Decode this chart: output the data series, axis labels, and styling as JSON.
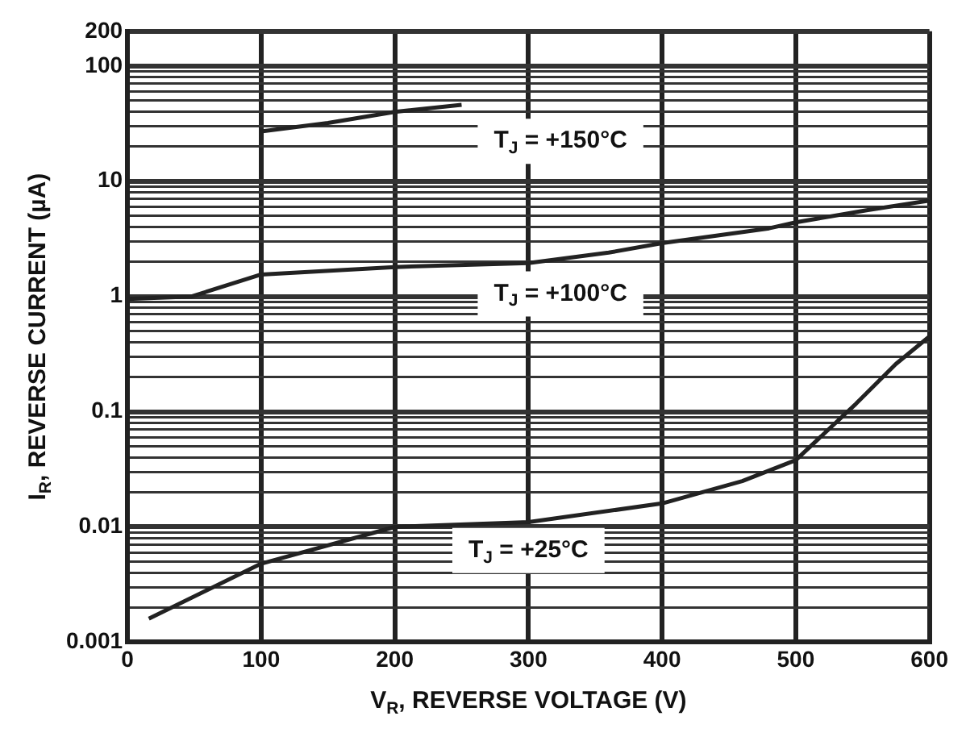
{
  "chart_data": {
    "type": "line",
    "xlabel": "V$_{R}$, REVERSE VOLTAGE (V)",
    "ylabel": "I$_{R}$, REVERSE CURRENT (µA)",
    "log": "y",
    "grid": true,
    "legend": false,
    "xlim": [
      0,
      600
    ],
    "xticks": [
      0,
      100,
      200,
      300,
      400,
      500,
      600
    ],
    "ylim": [
      0.001,
      200
    ],
    "yticks": [
      0.001,
      {
        "value": 0.002,
        "label": null
      },
      {
        "value": 0.003,
        "label": null
      },
      {
        "value": 0.004,
        "label": null
      },
      {
        "value": 0.005,
        "label": null
      },
      {
        "value": 0.006,
        "label": null
      },
      {
        "value": 0.007,
        "label": null
      },
      {
        "value": 0.008,
        "label": null
      },
      {
        "value": 0.009,
        "label": null
      },
      0.01,
      {
        "value": 0.02,
        "label": null
      },
      {
        "value": 0.03,
        "label": null
      },
      {
        "value": 0.04,
        "label": null
      },
      {
        "value": 0.05,
        "label": null
      },
      {
        "value": 0.06,
        "label": null
      },
      {
        "value": 0.07,
        "label": null
      },
      {
        "value": 0.08,
        "label": null
      },
      {
        "value": 0.09,
        "label": null
      },
      0.1,
      {
        "value": 0.2,
        "label": null
      },
      {
        "value": 0.3,
        "label": null
      },
      {
        "value": 0.4,
        "label": null
      },
      {
        "value": 0.5,
        "label": null
      },
      {
        "value": 0.6,
        "label": null
      },
      {
        "value": 0.7,
        "label": null
      },
      {
        "value": 0.8,
        "label": null
      },
      {
        "value": 0.9,
        "label": null
      },
      1,
      {
        "value": 2,
        "label": null
      },
      {
        "value": 3,
        "label": null
      },
      {
        "value": 4,
        "label": null
      },
      {
        "value": 5,
        "label": null
      },
      {
        "value": 6,
        "label": null
      },
      {
        "value": 7,
        "label": null
      },
      {
        "value": 8,
        "label": null
      },
      {
        "value": 9,
        "label": null
      },
      10,
      {
        "value": 20,
        "label": null
      },
      {
        "value": 30,
        "label": null
      },
      {
        "value": 40,
        "label": null
      },
      {
        "value": 50,
        "label": null
      },
      {
        "value": 60,
        "label": null
      },
      {
        "value": 70,
        "label": null
      },
      {
        "value": 80,
        "label": null
      },
      {
        "value": 90,
        "label": null
      },
      100,
      200
    ],
    "series": [
      {
        "color": "#222222",
        "x": [
          100,
          150,
          200,
          250
        ],
        "values": [
          27,
          32,
          40,
          46
        ]
      },
      {
        "color": "#222222",
        "x": [
          0,
          48,
          100,
          200,
          300,
          360,
          400,
          480,
          500,
          553,
          600
        ],
        "values": [
          0.95,
          1.0,
          1.55,
          1.8,
          1.95,
          2.4,
          2.9,
          3.9,
          4.4,
          5.6,
          6.8
        ]
      },
      {
        "color": "#222222",
        "x": [
          16,
          100,
          200,
          300,
          400,
          460,
          500,
          545,
          575,
          600
        ],
        "values": [
          0.0016,
          0.0048,
          0.01,
          0.011,
          0.016,
          0.025,
          0.038,
          0.117,
          0.26,
          0.45
        ]
      }
    ],
    "annotations": [
      "T$_{J}$ = +150°C",
      "T$_{J}$ = +100°C",
      "T$_{J}$ = +25°C"
    ]
  }
}
